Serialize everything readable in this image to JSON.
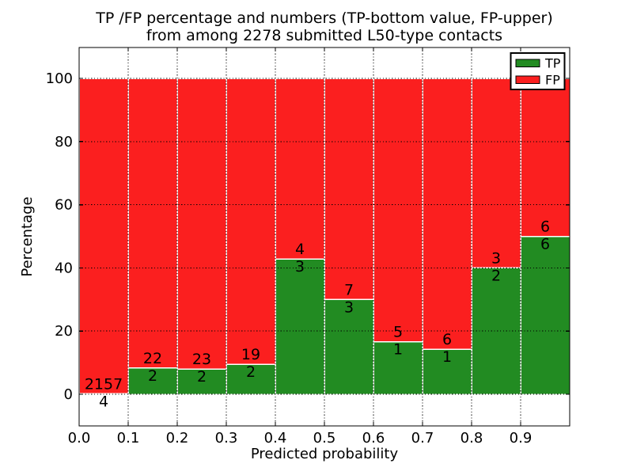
{
  "chart_data": {
    "type": "bar",
    "stacked": true,
    "orientation": "vertical",
    "title_line1": "TP /FP percentage and numbers (TP-bottom value, FP-upper)",
    "title_line2": "from among 2278 submitted L50-type contacts",
    "total_submitted": 2278,
    "xlabel": "Predicted probability",
    "ylabel": "Percentage",
    "xlim": [
      0.0,
      1.0
    ],
    "ylim": [
      -10,
      110
    ],
    "bin_width": 0.1,
    "bin_starts": [
      0.0,
      0.1,
      0.2,
      0.3,
      0.4,
      0.5,
      0.6,
      0.7,
      0.8,
      0.9
    ],
    "x_tick_labels": [
      "0.0",
      "0.1",
      "0.2",
      "0.3",
      "0.4",
      "0.5",
      "0.6",
      "0.7",
      "0.8",
      "0.9"
    ],
    "x_tick_values": [
      0.0,
      0.1,
      0.2,
      0.3,
      0.4,
      0.5,
      0.6,
      0.7,
      0.8,
      0.9
    ],
    "y_tick_labels": [
      "0",
      "20",
      "40",
      "60",
      "80",
      "100"
    ],
    "y_tick_values": [
      0,
      20,
      40,
      60,
      80,
      100
    ],
    "grid": true,
    "grid_style": "dotted",
    "grid_color": "#000000",
    "series": [
      {
        "name": "TP",
        "color": "#228b22",
        "counts": [
          4,
          2,
          2,
          2,
          3,
          3,
          1,
          1,
          2,
          6
        ],
        "percent": [
          0.19,
          8.33,
          8.0,
          9.52,
          42.86,
          30.0,
          16.67,
          14.29,
          40.0,
          50.0
        ]
      },
      {
        "name": "FP",
        "color": "#fb1f1f",
        "counts": [
          2157,
          22,
          23,
          19,
          4,
          7,
          5,
          6,
          3,
          6
        ],
        "percent": [
          99.81,
          91.67,
          92.0,
          90.48,
          57.14,
          70.0,
          83.33,
          85.71,
          60.0,
          50.0
        ]
      }
    ],
    "bar_edge_color": "#ffffff",
    "axis_color": "#000000",
    "legend": {
      "position": "upper right",
      "items": [
        {
          "label": "TP",
          "color": "#228b22"
        },
        {
          "label": "FP",
          "color": "#fb1f1f"
        }
      ]
    }
  }
}
